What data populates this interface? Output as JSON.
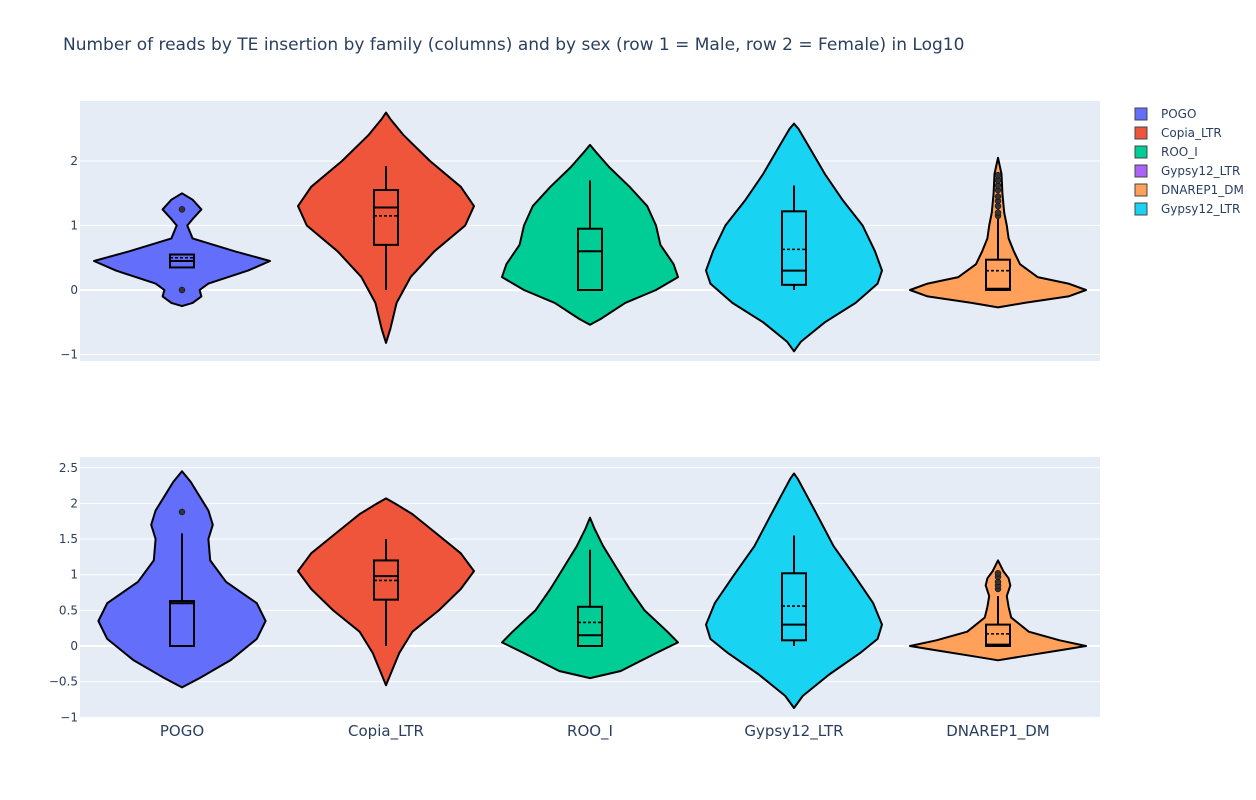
{
  "chart_data": {
    "type": "violin",
    "title": "Number of reads by TE insertion by family (columns) and by sex (row 1 = Male, row 2 = Female) in Log10",
    "categories": [
      "POGO",
      "Copia_LTR",
      "ROO_I",
      "Gypsy12_LTR",
      "DNAREP1_DM"
    ],
    "legend": [
      {
        "name": "POGO",
        "color": "#636efa"
      },
      {
        "name": "Copia_LTR",
        "color": "#ef553b"
      },
      {
        "name": "ROO_I",
        "color": "#00cc96"
      },
      {
        "name": "Gypsy12_LTR",
        "color": "#ab63fa"
      },
      {
        "name": "DNAREP1_DM",
        "color": "#ffa15a"
      },
      {
        "name": "Gypsy12_LTR",
        "color": "#19d3f3"
      }
    ],
    "legend_placement": "top-right",
    "grid": true,
    "rows": [
      {
        "ylim": [
          -1.1,
          2.95
        ],
        "yticks": [
          {
            "value": 2,
            "label": "2"
          },
          {
            "value": 1,
            "label": "1"
          },
          {
            "value": 0,
            "label": "0"
          },
          {
            "value": -1,
            "label": "−1"
          }
        ],
        "violins": [
          {
            "category": "POGO",
            "color": "#636efa",
            "profile": [
              [
                -0.25,
                0
              ],
              [
                -0.2,
                0.12
              ],
              [
                -0.1,
                0.22
              ],
              [
                0,
                0.2
              ],
              [
                0.1,
                0.3
              ],
              [
                0.3,
                0.75
              ],
              [
                0.45,
                1.0
              ],
              [
                0.6,
                0.6
              ],
              [
                0.8,
                0.12
              ],
              [
                1.0,
                0.06
              ],
              [
                1.1,
                0.12
              ],
              [
                1.25,
                0.22
              ],
              [
                1.4,
                0.12
              ],
              [
                1.5,
                0
              ]
            ],
            "box": {
              "q1": 0.35,
              "median": 0.45,
              "q3": 0.55,
              "mean": 0.5,
              "wmin": 0.35,
              "wmax": 0.55
            },
            "outliers": [
              1.25,
              0.0
            ]
          },
          {
            "category": "Copia_LTR",
            "color": "#ef553b",
            "profile": [
              [
                -0.82,
                0
              ],
              [
                -0.6,
                0.05
              ],
              [
                -0.2,
                0.12
              ],
              [
                0.2,
                0.28
              ],
              [
                0.6,
                0.55
              ],
              [
                1.0,
                0.9
              ],
              [
                1.3,
                1.0
              ],
              [
                1.6,
                0.85
              ],
              [
                2.0,
                0.5
              ],
              [
                2.4,
                0.2
              ],
              [
                2.65,
                0.05
              ],
              [
                2.75,
                0
              ]
            ],
            "box": {
              "q1": 0.7,
              "median": 1.28,
              "q3": 1.55,
              "mean": 1.15,
              "wmin": 0.0,
              "wmax": 1.92
            },
            "outliers": []
          },
          {
            "category": "ROO_I",
            "color": "#00cc96",
            "profile": [
              [
                -0.54,
                0
              ],
              [
                -0.45,
                0.12
              ],
              [
                -0.2,
                0.4
              ],
              [
                0.0,
                0.75
              ],
              [
                0.2,
                1.0
              ],
              [
                0.4,
                0.95
              ],
              [
                0.7,
                0.8
              ],
              [
                1.0,
                0.75
              ],
              [
                1.3,
                0.65
              ],
              [
                1.6,
                0.45
              ],
              [
                1.9,
                0.22
              ],
              [
                2.15,
                0.06
              ],
              [
                2.25,
                0
              ]
            ],
            "box": {
              "q1": 0.0,
              "median": 0.6,
              "q3": 0.95,
              "mean": 0.6,
              "wmin": 0.0,
              "wmax": 1.7
            },
            "outliers": []
          },
          {
            "category": "Gypsy12_LTR",
            "color": "#19d3f3",
            "profile": [
              [
                -0.95,
                0
              ],
              [
                -0.8,
                0.08
              ],
              [
                -0.5,
                0.35
              ],
              [
                -0.2,
                0.7
              ],
              [
                0.1,
                0.95
              ],
              [
                0.3,
                1.0
              ],
              [
                0.6,
                0.92
              ],
              [
                1.0,
                0.78
              ],
              [
                1.4,
                0.55
              ],
              [
                1.8,
                0.35
              ],
              [
                2.2,
                0.18
              ],
              [
                2.5,
                0.05
              ],
              [
                2.58,
                0
              ]
            ],
            "box": {
              "q1": 0.08,
              "median": 0.3,
              "q3": 1.22,
              "mean": 0.63,
              "wmin": 0.0,
              "wmax": 1.62
            },
            "outliers": []
          },
          {
            "category": "DNAREP1_DM",
            "color": "#ffa15a",
            "profile": [
              [
                -0.27,
                0
              ],
              [
                -0.2,
                0.3
              ],
              [
                -0.1,
                0.8
              ],
              [
                0.0,
                1.0
              ],
              [
                0.1,
                0.8
              ],
              [
                0.2,
                0.45
              ],
              [
                0.4,
                0.25
              ],
              [
                0.6,
                0.18
              ],
              [
                0.8,
                0.12
              ],
              [
                1.0,
                0.1
              ],
              [
                1.2,
                0.07
              ],
              [
                1.5,
                0.05
              ],
              [
                1.8,
                0.04
              ],
              [
                2.05,
                0
              ]
            ],
            "box": {
              "q1": 0.0,
              "median": 0.02,
              "q3": 0.47,
              "mean": 0.3,
              "wmin": 0.0,
              "wmax": 1.1
            },
            "outliers": [
              1.15,
              1.2,
              1.3,
              1.38,
              1.45,
              1.55,
              1.62,
              1.7,
              1.78
            ]
          }
        ]
      },
      {
        "ylim": [
          -1.05,
          2.65
        ],
        "yticks": [
          {
            "value": 2.5,
            "label": "2.5"
          },
          {
            "value": 2,
            "label": "2"
          },
          {
            "value": 1.5,
            "label": "1.5"
          },
          {
            "value": 1,
            "label": "1"
          },
          {
            "value": 0.5,
            "label": "0.5"
          },
          {
            "value": 0,
            "label": "0"
          },
          {
            "value": -0.5,
            "label": "−0.5"
          },
          {
            "value": -1,
            "label": "−1"
          }
        ],
        "violins": [
          {
            "category": "POGO",
            "color": "#636efa",
            "profile": [
              [
                -0.58,
                0
              ],
              [
                -0.45,
                0.2
              ],
              [
                -0.2,
                0.55
              ],
              [
                0.1,
                0.85
              ],
              [
                0.35,
                0.95
              ],
              [
                0.6,
                0.85
              ],
              [
                0.9,
                0.5
              ],
              [
                1.2,
                0.32
              ],
              [
                1.5,
                0.3
              ],
              [
                1.7,
                0.35
              ],
              [
                1.9,
                0.3
              ],
              [
                2.1,
                0.2
              ],
              [
                2.3,
                0.1
              ],
              [
                2.45,
                0
              ]
            ],
            "box": {
              "q1": 0.0,
              "median": 0.6,
              "q3": 0.63,
              "mean": 0.6,
              "wmin": 0.0,
              "wmax": 1.58
            },
            "outliers": [
              1.88
            ]
          },
          {
            "category": "Copia_LTR",
            "color": "#ef553b",
            "profile": [
              [
                -0.55,
                0
              ],
              [
                -0.4,
                0.05
              ],
              [
                -0.1,
                0.15
              ],
              [
                0.2,
                0.3
              ],
              [
                0.5,
                0.6
              ],
              [
                0.8,
                0.85
              ],
              [
                1.05,
                1.0
              ],
              [
                1.3,
                0.85
              ],
              [
                1.6,
                0.55
              ],
              [
                1.85,
                0.3
              ],
              [
                2.0,
                0.1
              ],
              [
                2.07,
                0
              ]
            ],
            "box": {
              "q1": 0.65,
              "median": 0.98,
              "q3": 1.2,
              "mean": 0.92,
              "wmin": 0.0,
              "wmax": 1.5
            },
            "outliers": []
          },
          {
            "category": "ROO_I",
            "color": "#00cc96",
            "profile": [
              [
                -0.45,
                0
              ],
              [
                -0.35,
                0.35
              ],
              [
                -0.1,
                0.75
              ],
              [
                0.05,
                1.0
              ],
              [
                0.2,
                0.88
              ],
              [
                0.5,
                0.62
              ],
              [
                0.8,
                0.45
              ],
              [
                1.1,
                0.3
              ],
              [
                1.4,
                0.15
              ],
              [
                1.65,
                0.05
              ],
              [
                1.8,
                0
              ]
            ],
            "box": {
              "q1": 0.0,
              "median": 0.15,
              "q3": 0.55,
              "mean": 0.33,
              "wmin": 0.0,
              "wmax": 1.35
            },
            "outliers": []
          },
          {
            "category": "Gypsy12_LTR",
            "color": "#19d3f3",
            "profile": [
              [
                -0.87,
                0
              ],
              [
                -0.7,
                0.1
              ],
              [
                -0.4,
                0.4
              ],
              [
                -0.1,
                0.75
              ],
              [
                0.1,
                0.95
              ],
              [
                0.3,
                1.0
              ],
              [
                0.6,
                0.9
              ],
              [
                1.0,
                0.68
              ],
              [
                1.4,
                0.45
              ],
              [
                1.8,
                0.28
              ],
              [
                2.1,
                0.15
              ],
              [
                2.35,
                0.04
              ],
              [
                2.42,
                0
              ]
            ],
            "box": {
              "q1": 0.08,
              "median": 0.3,
              "q3": 1.02,
              "mean": 0.56,
              "wmin": 0.0,
              "wmax": 1.55
            },
            "outliers": []
          },
          {
            "category": "DNAREP1_DM",
            "color": "#ffa15a",
            "profile": [
              [
                -0.2,
                0
              ],
              [
                -0.15,
                0.25
              ],
              [
                -0.05,
                0.75
              ],
              [
                0.0,
                1.0
              ],
              [
                0.08,
                0.7
              ],
              [
                0.2,
                0.35
              ],
              [
                0.4,
                0.15
              ],
              [
                0.55,
                0.12
              ],
              [
                0.7,
                0.1
              ],
              [
                0.85,
                0.14
              ],
              [
                0.95,
                0.12
              ],
              [
                1.05,
                0.06
              ],
              [
                1.2,
                0
              ]
            ],
            "box": {
              "q1": 0.0,
              "median": 0.02,
              "q3": 0.3,
              "mean": 0.17,
              "wmin": 0.0,
              "wmax": 0.7
            },
            "outliers": [
              0.8,
              0.85,
              0.9,
              0.97,
              1.02
            ]
          }
        ]
      }
    ]
  }
}
